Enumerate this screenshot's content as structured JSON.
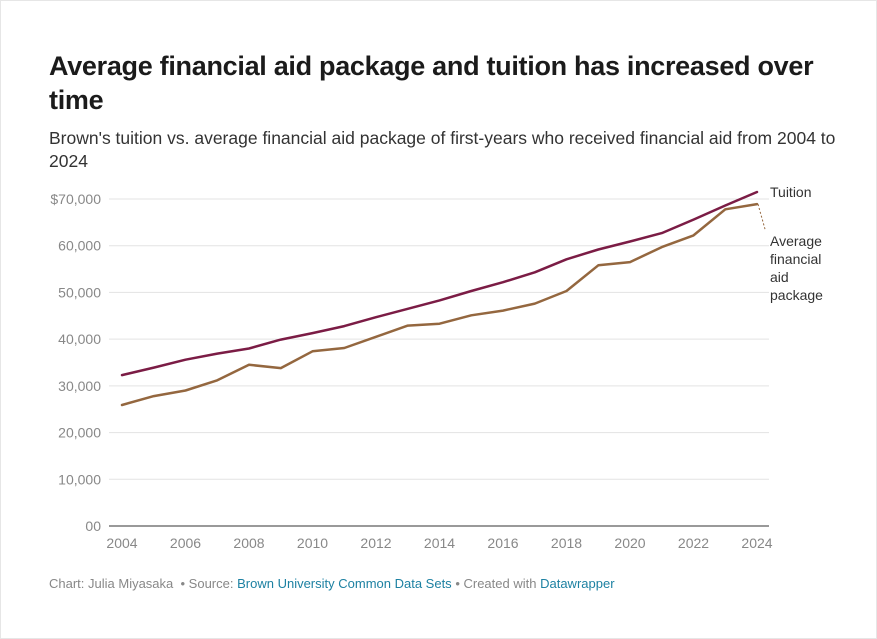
{
  "title": "Average financial aid package and tuition has increased over time",
  "subtitle": "Brown's tuition vs. average financial aid package of first-years who received financial aid from 2004 to 2024",
  "footer": {
    "chart_by": "Chart: Julia Miyasaka",
    "source_prefix": "• Source:",
    "source_link": "Brown University Common Data Sets",
    "created_prefix": "• Created with",
    "created_link": "Datawrapper"
  },
  "colors": {
    "tuition": "#7b1c45",
    "aid": "#94673f",
    "grid": "#e3e3e3",
    "axis": "#333333"
  },
  "chart_data": {
    "type": "line",
    "x": [
      2004,
      2005,
      2006,
      2007,
      2008,
      2009,
      2010,
      2011,
      2012,
      2013,
      2014,
      2015,
      2016,
      2017,
      2018,
      2019,
      2020,
      2021,
      2022,
      2023,
      2024
    ],
    "series": [
      {
        "name": "Tuition",
        "key": "tuition",
        "values": [
          32300,
          33900,
          35600,
          36900,
          38000,
          39900,
          41300,
          42800,
          44700,
          46500,
          48300,
          50300,
          52200,
          54300,
          57100,
          59200,
          60900,
          62700,
          65600,
          68600,
          71500
        ]
      },
      {
        "name": "Average financial aid package",
        "key": "aid",
        "values": [
          25900,
          27800,
          29000,
          31200,
          34500,
          33800,
          37400,
          38100,
          40500,
          42900,
          43300,
          45100,
          46100,
          47600,
          50300,
          55800,
          56500,
          59700,
          62200,
          67800,
          68900
        ]
      }
    ],
    "labels": {
      "tuition": [
        "Tuition"
      ],
      "aid": [
        "Average",
        "financial",
        "aid",
        "package"
      ]
    },
    "y_ticks": [
      {
        "value": 70000,
        "label": "$70,000"
      },
      {
        "value": 60000,
        "label": "60,000"
      },
      {
        "value": 50000,
        "label": "50,000"
      },
      {
        "value": 40000,
        "label": "40,000"
      },
      {
        "value": 30000,
        "label": "30,000"
      },
      {
        "value": 20000,
        "label": "20,000"
      },
      {
        "value": 10000,
        "label": "10,000"
      },
      {
        "value": 0,
        "label": "00"
      }
    ],
    "x_ticks": [
      2004,
      2006,
      2008,
      2010,
      2012,
      2014,
      2016,
      2018,
      2020,
      2022,
      2024
    ],
    "ylim": [
      0,
      70000
    ],
    "xlabel": "",
    "ylabel": "",
    "grid": true
  }
}
